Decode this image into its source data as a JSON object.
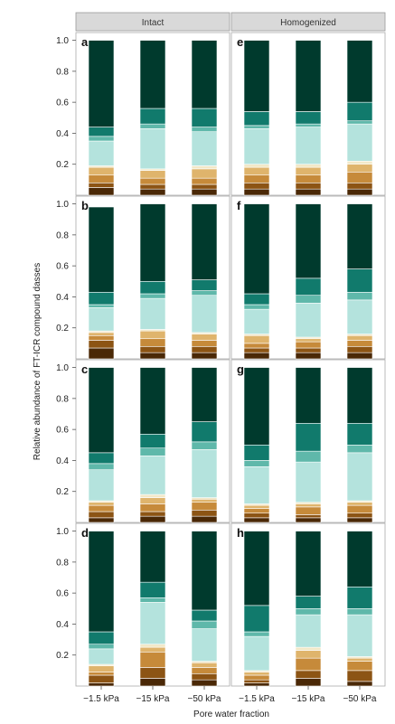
{
  "chart_data": {
    "type": "bar",
    "stacked": true,
    "xlabel": "Pore water fraction",
    "ylabel": "Relative abundance of FT-ICR compound dasses",
    "categories": [
      "−1.5 kPa",
      "−15 kPa",
      "−50 kPa"
    ],
    "columns": [
      "Intact",
      "Homogenized"
    ],
    "ylim": [
      0,
      1.05
    ],
    "yticks": [
      "0.2",
      "0.4",
      "0.6",
      "0.8",
      "1.0"
    ],
    "yticks_values": [
      0.2,
      0.4,
      0.6,
      0.8,
      1.0
    ],
    "grid": false,
    "legend": "none",
    "colors": [
      "#4a2806",
      "#8c5414",
      "#c68a3a",
      "#dfb46c",
      "#f2e8c8",
      "#b4e3dd",
      "#5fb8aa",
      "#117a6c",
      "#003a2d"
    ],
    "panels": [
      {
        "label": "a",
        "column": "Intact",
        "bars": [
          [
            0.05,
            0.03,
            0.05,
            0.05,
            0.01,
            0.16,
            0.03,
            0.06,
            0.56
          ],
          [
            0.04,
            0.03,
            0.04,
            0.05,
            0.01,
            0.26,
            0.03,
            0.1,
            0.44
          ],
          [
            0.04,
            0.03,
            0.04,
            0.06,
            0.02,
            0.22,
            0.03,
            0.12,
            0.44
          ]
        ]
      },
      {
        "label": "e",
        "column": "Homogenized",
        "bars": [
          [
            0.04,
            0.04,
            0.05,
            0.05,
            0.02,
            0.23,
            0.02,
            0.09,
            0.46
          ],
          [
            0.04,
            0.04,
            0.05,
            0.05,
            0.02,
            0.24,
            0.02,
            0.08,
            0.46
          ],
          [
            0.04,
            0.04,
            0.07,
            0.05,
            0.02,
            0.24,
            0.02,
            0.12,
            0.4
          ]
        ]
      },
      {
        "label": "b",
        "column": "Intact",
        "bars": [
          [
            0.07,
            0.05,
            0.03,
            0.02,
            0.01,
            0.15,
            0.02,
            0.08,
            0.55
          ],
          [
            0.04,
            0.04,
            0.05,
            0.05,
            0.01,
            0.2,
            0.03,
            0.08,
            0.5
          ],
          [
            0.04,
            0.04,
            0.04,
            0.04,
            0.01,
            0.24,
            0.03,
            0.07,
            0.49
          ]
        ]
      },
      {
        "label": "f",
        "column": "Homogenized",
        "bars": [
          [
            0.04,
            0.03,
            0.03,
            0.05,
            0.01,
            0.16,
            0.03,
            0.07,
            0.58
          ],
          [
            0.04,
            0.03,
            0.04,
            0.02,
            0.01,
            0.22,
            0.05,
            0.11,
            0.48
          ],
          [
            0.04,
            0.04,
            0.04,
            0.03,
            0.01,
            0.22,
            0.05,
            0.15,
            0.42
          ]
        ]
      },
      {
        "label": "c",
        "column": "Intact",
        "bars": [
          [
            0.03,
            0.04,
            0.04,
            0.02,
            0.01,
            0.2,
            0.04,
            0.07,
            0.55
          ],
          [
            0.04,
            0.03,
            0.05,
            0.04,
            0.02,
            0.25,
            0.05,
            0.09,
            0.43
          ],
          [
            0.04,
            0.04,
            0.05,
            0.02,
            0.01,
            0.31,
            0.05,
            0.13,
            0.35
          ]
        ]
      },
      {
        "label": "g",
        "column": "Homogenized",
        "bars": [
          [
            0.03,
            0.03,
            0.03,
            0.02,
            0.01,
            0.24,
            0.04,
            0.1,
            0.5
          ],
          [
            0.03,
            0.02,
            0.05,
            0.02,
            0.01,
            0.26,
            0.07,
            0.18,
            0.36
          ],
          [
            0.03,
            0.03,
            0.05,
            0.02,
            0.01,
            0.31,
            0.05,
            0.14,
            0.36
          ]
        ]
      },
      {
        "label": "d",
        "column": "Intact",
        "bars": [
          [
            0.02,
            0.05,
            0.02,
            0.04,
            0.01,
            0.1,
            0.03,
            0.08,
            0.65
          ],
          [
            0.05,
            0.07,
            0.1,
            0.03,
            0.02,
            0.27,
            0.03,
            0.1,
            0.33
          ],
          [
            0.04,
            0.04,
            0.04,
            0.03,
            0.01,
            0.21,
            0.05,
            0.07,
            0.51
          ]
        ]
      },
      {
        "label": "h",
        "column": "Homogenized",
        "bars": [
          [
            0.02,
            0.02,
            0.03,
            0.02,
            0.01,
            0.22,
            0.03,
            0.17,
            0.48
          ],
          [
            0.05,
            0.05,
            0.08,
            0.05,
            0.02,
            0.21,
            0.04,
            0.08,
            0.42
          ],
          [
            0.03,
            0.07,
            0.06,
            0.02,
            0.01,
            0.27,
            0.04,
            0.14,
            0.36
          ]
        ]
      }
    ]
  }
}
